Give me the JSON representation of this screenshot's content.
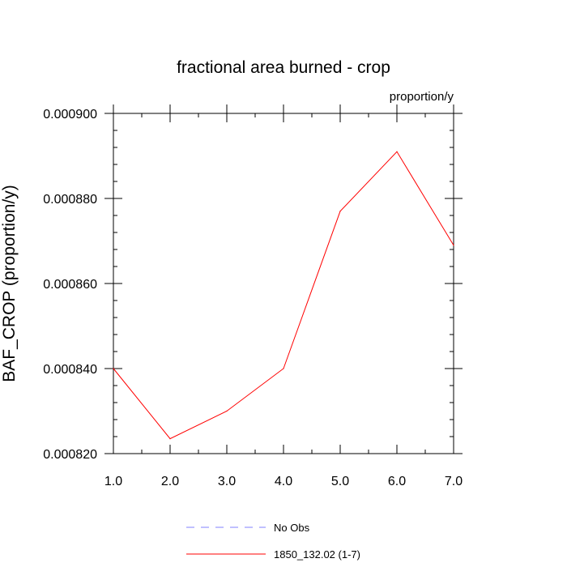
{
  "chart_data": {
    "type": "line",
    "title": "fractional area burned - crop",
    "units": "proportion/y",
    "xlabel": "",
    "ylabel": "BAF_CROP  (proportion/y)",
    "xlim": [
      1.0,
      7.0
    ],
    "ylim": [
      0.00082,
      0.0009
    ],
    "x_ticks": [
      "1.0",
      "2.0",
      "3.0",
      "4.0",
      "5.0",
      "6.0",
      "7.0"
    ],
    "y_ticks": [
      "0.000820",
      "0.000840",
      "0.000860",
      "0.000880",
      "0.000900"
    ],
    "grid": false,
    "legend_position": "bottom",
    "series": [
      {
        "name": "No Obs",
        "color": "#8080ff",
        "dashed": true,
        "x": [],
        "values": []
      },
      {
        "name": "1850_132.02 (1-7)",
        "color": "#ff0000",
        "dashed": false,
        "x": [
          1,
          2,
          3,
          4,
          5,
          6,
          7
        ],
        "values": [
          0.00084,
          0.0008235,
          0.00083,
          0.00084,
          0.000877,
          0.000891,
          0.000869
        ]
      }
    ]
  }
}
